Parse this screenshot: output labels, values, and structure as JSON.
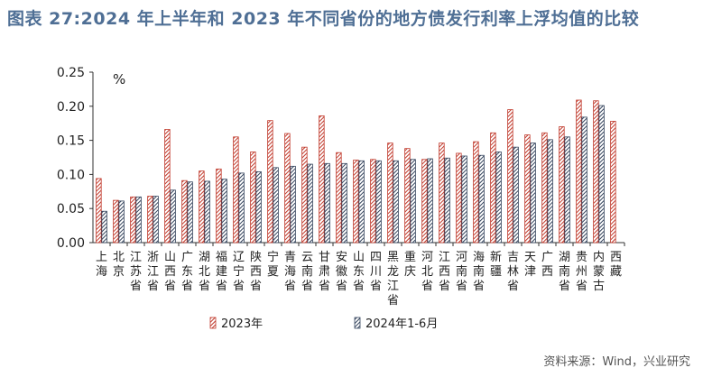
{
  "title": "图表 27:2024 年上半年和 2023 年不同省份的地方债发行利率上浮均值的比较",
  "source": "资料来源：Wind，兴业研究",
  "chart_data": {
    "type": "bar",
    "unit_label": "%",
    "ylim": [
      0,
      0.25
    ],
    "yticks": [
      "0.00",
      "0.05",
      "0.10",
      "0.15",
      "0.20",
      "0.25"
    ],
    "grid": false,
    "legend_position": "bottom",
    "categories": [
      "上海",
      "北京",
      "江苏省",
      "浙江省",
      "山西省",
      "广东省",
      "湖北省",
      "福建省",
      "辽宁省",
      "陕西省",
      "宁夏",
      "青海省",
      "云南省",
      "甘肃省",
      "安徽省",
      "山东省",
      "四川省",
      "黑龙江省",
      "重庆",
      "河北省",
      "江西省",
      "河南省",
      "海南省",
      "新疆",
      "吉林省",
      "天津",
      "广西",
      "湖南省",
      "贵州省",
      "内蒙古",
      "西藏"
    ],
    "series": [
      {
        "name": "2023年",
        "color": "#c0392b",
        "values": [
          0.094,
          0.062,
          0.067,
          0.068,
          0.166,
          0.091,
          0.105,
          0.108,
          0.155,
          0.133,
          0.179,
          0.16,
          0.14,
          0.186,
          0.132,
          0.121,
          0.122,
          0.146,
          0.138,
          0.122,
          0.146,
          0.131,
          0.148,
          0.161,
          0.195,
          0.158,
          0.161,
          0.17,
          0.209,
          0.208,
          0.178
        ]
      },
      {
        "name": "2024年1-6月",
        "color": "#33435c",
        "values": [
          0.046,
          0.061,
          0.067,
          0.068,
          0.077,
          0.089,
          0.09,
          0.093,
          0.102,
          0.104,
          0.11,
          0.112,
          0.115,
          0.116,
          0.116,
          0.12,
          0.12,
          0.12,
          0.122,
          0.123,
          0.124,
          0.127,
          0.128,
          0.133,
          0.14,
          0.146,
          0.151,
          0.155,
          0.184,
          0.201,
          null
        ]
      }
    ]
  }
}
